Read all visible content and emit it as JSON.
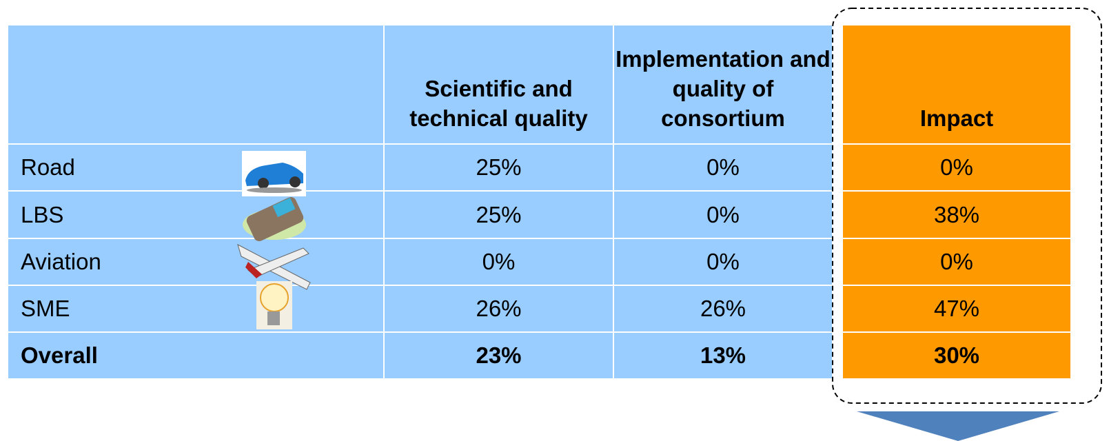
{
  "table": {
    "columns": [
      "Scientific and technical quality",
      "Implementation and quality of consortium",
      "Impact"
    ],
    "rows": [
      {
        "label": "Road",
        "cells": [
          "25%",
          "0%",
          "0%"
        ]
      },
      {
        "label": "LBS",
        "cells": [
          "25%",
          "0%",
          "38%"
        ]
      },
      {
        "label": "Aviation",
        "cells": [
          "0%",
          "0%",
          "0%"
        ]
      },
      {
        "label": "SME",
        "cells": [
          "26%",
          "26%",
          "47%"
        ]
      },
      {
        "label": "Overall",
        "cells": [
          "23%",
          "13%",
          "30%"
        ]
      }
    ]
  }
}
